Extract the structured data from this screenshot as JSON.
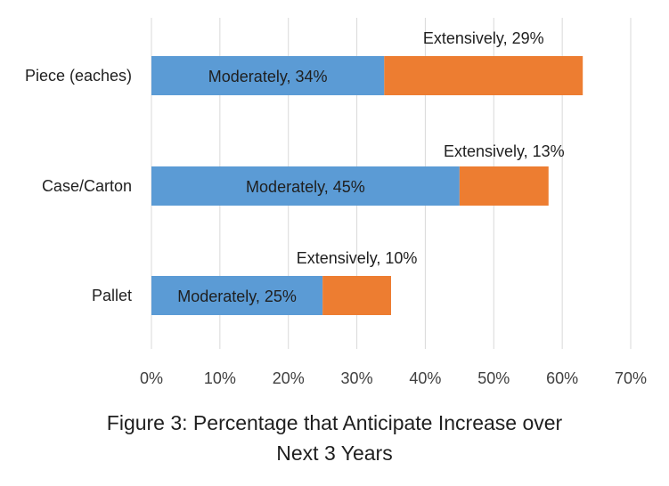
{
  "chart_data": {
    "type": "bar",
    "orientation": "horizontal",
    "stacked": true,
    "categories": [
      "Piece (eaches)",
      "Case/Carton",
      "Pallet"
    ],
    "series": [
      {
        "name": "Moderately",
        "values": [
          34,
          45,
          25
        ],
        "color": "#5b9bd5",
        "labels": [
          "Moderately, 34%",
          "Moderately, 45%",
          "Moderately, 25%"
        ]
      },
      {
        "name": "Extensively",
        "values": [
          29,
          13,
          10
        ],
        "color": "#ed7d31",
        "labels": [
          "Extensively, 29%",
          "Extensively, 13%",
          "Extensively, 10%"
        ]
      }
    ],
    "xlim": [
      0,
      70
    ],
    "tick_labels": [
      "0%",
      "10%",
      "20%",
      "30%",
      "40%",
      "50%",
      "60%",
      "70%"
    ],
    "grid": "vertical",
    "legend": "none"
  },
  "caption": {
    "line1": "Figure 3: Percentage that Anticipate Increase over",
    "line2": "Next 3 Years"
  }
}
